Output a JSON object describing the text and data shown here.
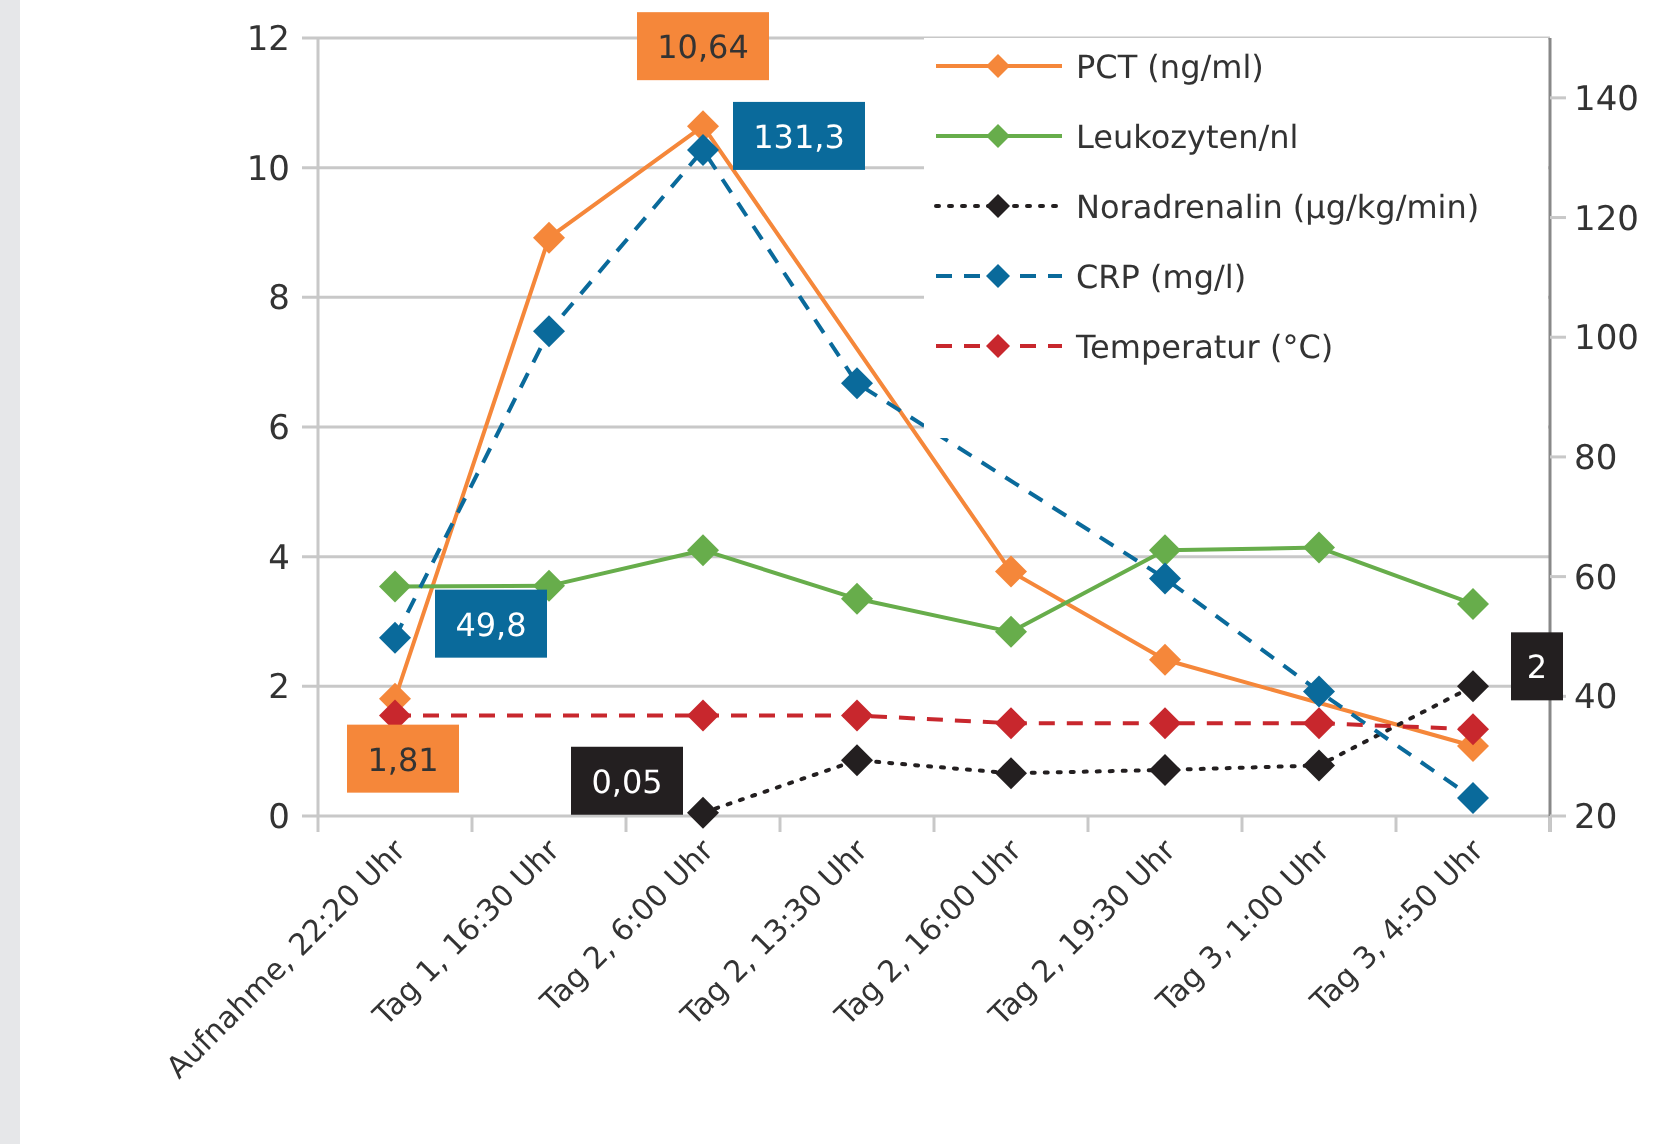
{
  "chart_data": {
    "type": "line",
    "categories": [
      "Aufnahme, 22:20 Uhr",
      "Tag 1, 16:30 Uhr",
      "Tag 2, 6:00 Uhr",
      "Tag 2, 13:30 Uhr",
      "Tag 2, 16:00 Uhr",
      "Tag 2, 19:30 Uhr",
      "Tag 3, 1:00 Uhr",
      "Tag 3, 4:50 Uhr"
    ],
    "series": [
      {
        "name": "PCT (ng/ml)",
        "color": "#f5873a",
        "line_style": "solid",
        "marker": "diamond",
        "values": [
          1.81,
          8.92,
          10.64,
          null,
          3.77,
          2.41,
          null,
          1.08
        ],
        "value_labels": [
          "1,81",
          null,
          "10,64",
          null,
          null,
          null,
          null,
          null
        ]
      },
      {
        "name": "Leukozyten/nl",
        "color": "#67ad4b",
        "line_style": "solid",
        "marker": "diamond",
        "values": [
          3.54,
          3.55,
          4.1,
          3.35,
          2.84,
          4.1,
          4.14,
          3.27
        ]
      },
      {
        "name": "Noradrenalin (µg/kg/min)",
        "color": "#231f20",
        "line_style": "dotted",
        "marker": "diamond",
        "values": [
          null,
          null,
          0.05,
          0.86,
          0.66,
          0.71,
          0.78,
          2
        ],
        "value_labels": [
          null,
          null,
          "0,05",
          null,
          null,
          null,
          null,
          "2"
        ]
      },
      {
        "name": "CRP (mg/l)",
        "color": "#0a6a9b",
        "line_style": "dashed",
        "marker": "diamond",
        "axis": "y2",
        "values": [
          49.8,
          101,
          131.3,
          92.3,
          null,
          59.7,
          40.8,
          23
        ],
        "value_labels": [
          "49,8",
          null,
          "131,3",
          null,
          null,
          null,
          null,
          null
        ]
      },
      {
        "name": "Temperatur (°C)",
        "color": "#c8272d",
        "line_style": "dashed",
        "marker": "diamond",
        "axis": "y2",
        "values": [
          36.8,
          null,
          36.8,
          36.8,
          35.5,
          35.5,
          35.5,
          34.5
        ]
      }
    ],
    "ylim": [
      0,
      12
    ],
    "yticks": [
      0,
      2,
      4,
      6,
      8,
      10,
      12
    ],
    "y2lim": [
      20,
      150
    ],
    "y2ticks": [
      20,
      40,
      60,
      80,
      100,
      120,
      140
    ],
    "grid": "y",
    "legend": "top right"
  }
}
